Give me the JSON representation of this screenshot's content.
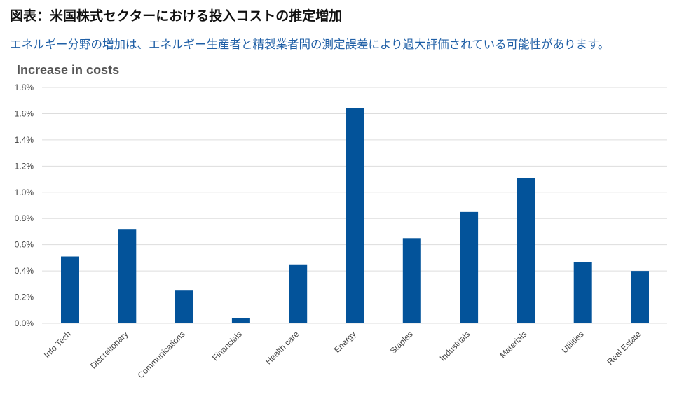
{
  "figure": {
    "title": "図表：米国株式セクターにおける投入コストの推定増加",
    "subtitle": "エネルギー分野の増加は、エネルギー生産者と精製業者間の測定誤差により過大評価されている可能性があります。"
  },
  "chart_data": {
    "type": "bar",
    "title": "Increase in costs",
    "xlabel": "",
    "ylabel": "",
    "categories": [
      "Info Tech",
      "Discretionary",
      "Communications",
      "Financials",
      "Health care",
      "Energy",
      "Staples",
      "Industrials",
      "Materials",
      "Utilities",
      "Real Estate"
    ],
    "values": [
      0.51,
      0.72,
      0.25,
      0.04,
      0.45,
      1.64,
      0.65,
      0.85,
      1.11,
      0.47,
      0.4
    ],
    "ylim": [
      0,
      1.8
    ],
    "yticks": [
      "0.0%",
      "0.2%",
      "0.4%",
      "0.6%",
      "0.8%",
      "1.0%",
      "1.2%",
      "1.4%",
      "1.6%",
      "1.8%"
    ],
    "ytick_values": [
      0,
      0.2,
      0.4,
      0.6,
      0.8,
      1.0,
      1.2,
      1.4,
      1.6,
      1.8
    ],
    "grid": true,
    "bar_color": "#03539a"
  }
}
